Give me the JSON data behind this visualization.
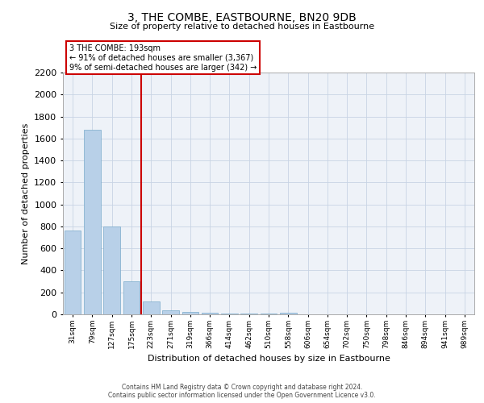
{
  "title": "3, THE COMBE, EASTBOURNE, BN20 9DB",
  "subtitle": "Size of property relative to detached houses in Eastbourne",
  "xlabel": "Distribution of detached houses by size in Eastbourne",
  "ylabel": "Number of detached properties",
  "categories": [
    "31sqm",
    "79sqm",
    "127sqm",
    "175sqm",
    "223sqm",
    "271sqm",
    "319sqm",
    "366sqm",
    "414sqm",
    "462sqm",
    "510sqm",
    "558sqm",
    "606sqm",
    "654sqm",
    "702sqm",
    "750sqm",
    "798sqm",
    "846sqm",
    "894sqm",
    "941sqm",
    "989sqm"
  ],
  "values": [
    760,
    1680,
    800,
    300,
    120,
    40,
    25,
    15,
    5,
    5,
    5,
    15,
    0,
    0,
    0,
    0,
    0,
    0,
    0,
    0,
    0
  ],
  "bar_color": "#b8d0e8",
  "bar_edgecolor": "#7aaaca",
  "vline_color": "#cc0000",
  "annotation_line1": "3 THE COMBE: 193sqm",
  "annotation_line2": "← 91% of detached houses are smaller (3,367)",
  "annotation_line3": "9% of semi-detached houses are larger (342) →",
  "annotation_box_color": "#cc0000",
  "annotation_box_facecolor": "white",
  "ylim": [
    0,
    2200
  ],
  "yticks": [
    0,
    200,
    400,
    600,
    800,
    1000,
    1200,
    1400,
    1600,
    1800,
    2000,
    2200
  ],
  "footer_line1": "Contains HM Land Registry data © Crown copyright and database right 2024.",
  "footer_line2": "Contains public sector information licensed under the Open Government Licence v3.0.",
  "bg_color": "#eef2f8",
  "grid_color": "#c8d4e4",
  "title_fontsize": 10,
  "subtitle_fontsize": 8
}
